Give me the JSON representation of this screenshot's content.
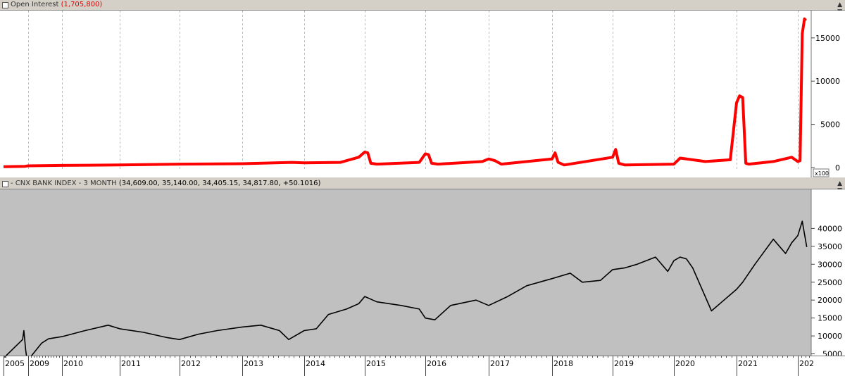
{
  "panes": {
    "open_interest": {
      "title": "Open Interest",
      "value": "(1,705,800)",
      "multiplier": "x100",
      "color": "#ff0000"
    },
    "bank_index": {
      "title": "- CNX BANK INDEX - 3 MONTH",
      "ohlc": "(34,609.00, 35,140.00, 34,405.15, 34,817.80, +50.1016)",
      "color": "#000000"
    }
  },
  "x_axis_labels": [
    "2005",
    "2009",
    "2010",
    "2011",
    "2012",
    "2013",
    "2014",
    "2015",
    "2016",
    "2017",
    "2018",
    "2019",
    "2020",
    "2021",
    "202"
  ],
  "chart_data": [
    {
      "type": "line",
      "title": "Open Interest",
      "ylim": [
        0,
        18000
      ],
      "yticks": [
        0,
        5000,
        10000,
        15000
      ],
      "ytick_labels": [
        "0",
        "5000",
        "10000",
        "15000"
      ],
      "grid": true,
      "series": [
        {
          "name": "Open Interest",
          "color": "#ff0000",
          "x": [
            2005.0,
            2008.5,
            2009.0,
            2010.0,
            2011.0,
            2012.0,
            2013.0,
            2013.8,
            2014.0,
            2014.6,
            2014.9,
            2015.0,
            2015.05,
            2015.1,
            2015.2,
            2015.9,
            2016.0,
            2016.05,
            2016.1,
            2016.2,
            2016.9,
            2017.0,
            2017.1,
            2017.2,
            2018.0,
            2018.05,
            2018.1,
            2018.2,
            2019.0,
            2019.05,
            2019.1,
            2019.2,
            2020.0,
            2020.1,
            2020.5,
            2020.9,
            2021.0,
            2021.05,
            2021.1,
            2021.15,
            2021.2,
            2021.6,
            2021.9,
            2022.0,
            2022.05,
            2022.1,
            2022.15,
            2022.18
          ],
          "y": [
            100,
            150,
            200,
            250,
            300,
            400,
            450,
            600,
            550,
            600,
            1200,
            1800,
            1700,
            500,
            400,
            600,
            1600,
            1500,
            500,
            400,
            700,
            1000,
            800,
            400,
            1000,
            1700,
            600,
            300,
            1200,
            2100,
            500,
            300,
            400,
            1100,
            700,
            900,
            7500,
            8300,
            8100,
            500,
            400,
            700,
            1200,
            700,
            800,
            15500,
            17200,
            17000
          ]
        }
      ]
    },
    {
      "type": "line",
      "title": "CNX BANK INDEX - 3 MONTH",
      "ylim": [
        0,
        45000
      ],
      "yticks": [
        5000,
        10000,
        15000,
        20000,
        25000,
        30000,
        35000,
        40000
      ],
      "ytick_labels": [
        "5000",
        "10000",
        "15000",
        "20000",
        "25000",
        "30000",
        "35000",
        "40000"
      ],
      "grid": false,
      "series": [
        {
          "name": "CNX BANK INDEX - 3 MONTH",
          "color": "#000000",
          "x": [
            2005.0,
            2008.1,
            2008.3,
            2008.6,
            2008.75,
            2008.95,
            2009.1,
            2009.4,
            2009.6,
            2010.0,
            2010.4,
            2010.8,
            2011.0,
            2011.4,
            2011.8,
            2012.0,
            2012.3,
            2012.6,
            2013.0,
            2013.3,
            2013.6,
            2013.75,
            2014.0,
            2014.2,
            2014.4,
            2014.7,
            2014.9,
            2015.0,
            2015.2,
            2015.6,
            2015.9,
            2016.0,
            2016.15,
            2016.4,
            2016.8,
            2017.0,
            2017.3,
            2017.6,
            2017.9,
            2018.0,
            2018.3,
            2018.5,
            2018.8,
            2019.0,
            2019.2,
            2019.4,
            2019.7,
            2019.9,
            2020.0,
            2020.1,
            2020.2,
            2020.3,
            2020.6,
            2020.8,
            2021.0,
            2021.1,
            2021.3,
            2021.6,
            2021.8,
            2021.9,
            2022.0,
            2022.1,
            2022.2
          ],
          "y": [
            3800,
            9000,
            11500,
            6000,
            4200,
            3500,
            4500,
            8000,
            9200,
            9800,
            11500,
            13000,
            12000,
            11000,
            9500,
            9000,
            10500,
            11500,
            12500,
            13000,
            11500,
            9000,
            11500,
            12000,
            16000,
            17500,
            19000,
            21000,
            19500,
            18500,
            17500,
            15000,
            14500,
            18500,
            20000,
            18500,
            21000,
            24000,
            25500,
            26000,
            27500,
            25000,
            25500,
            28500,
            29000,
            30000,
            32000,
            28000,
            31000,
            32000,
            31500,
            29000,
            17000,
            20000,
            23000,
            25000,
            30000,
            37000,
            33000,
            36000,
            38000,
            42000,
            34800
          ]
        }
      ]
    }
  ]
}
